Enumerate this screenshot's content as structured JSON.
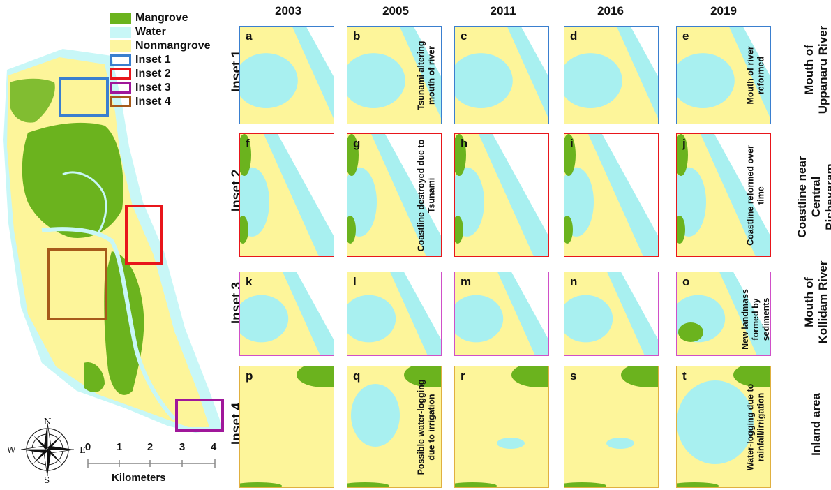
{
  "legend": {
    "items": [
      {
        "label": "Mangrove",
        "color": "#6bb31e",
        "kind": "fill"
      },
      {
        "label": "Water",
        "color": "#c8f7f7",
        "kind": "fill"
      },
      {
        "label": "Nonmangrove",
        "color": "#fdf5a0",
        "kind": "fill"
      },
      {
        "label": "Inset 1",
        "color": "#3a7fcf",
        "kind": "outline"
      },
      {
        "label": "Inset 2",
        "color": "#e8161b",
        "kind": "outline"
      },
      {
        "label": "Inset 3",
        "color": "#a0179a",
        "kind": "outline"
      },
      {
        "label": "Inset 4",
        "color": "#a65a1a",
        "kind": "outline"
      }
    ]
  },
  "years": [
    "2003",
    "2005",
    "2011",
    "2016",
    "2019"
  ],
  "rows": [
    {
      "inset": "Inset 1",
      "place": "Mouth of Uppanaru River",
      "border": "#3a7fcf",
      "letters": [
        "a",
        "b",
        "c",
        "d",
        "e"
      ],
      "notes": [
        {
          "col": 1,
          "text": "Tsunami altering mouth of river"
        },
        {
          "col": 4,
          "text": "Mouth of river reformed"
        }
      ]
    },
    {
      "inset": "Inset 2",
      "place": "Coastline near Central Pichavaram",
      "border": "#e8161b",
      "letters": [
        "f",
        "g",
        "h",
        "i",
        "j"
      ],
      "notes": [
        {
          "col": 1,
          "text": "Coastline destroyed due to Tsunami"
        },
        {
          "col": 4,
          "text": "Coastline reformed over time"
        }
      ]
    },
    {
      "inset": "Inset 3",
      "place": "Mouth of Kollidam River",
      "border": "#d04fc8",
      "letters": [
        "k",
        "l",
        "m",
        "n",
        "o"
      ],
      "notes": [
        {
          "col": 4,
          "text": "New landmass formed by sediments"
        }
      ]
    },
    {
      "inset": "Inset 4",
      "place": "Inland area",
      "border": "#e0b040",
      "letters": [
        "p",
        "q",
        "r",
        "s",
        "t"
      ],
      "notes": [
        {
          "col": 1,
          "text": "Possible water-logging due to irrigation"
        },
        {
          "col": 4,
          "text": "Water-logging due to rainfall/irrigation"
        }
      ]
    }
  ],
  "scale": {
    "ticks": [
      "0",
      "1",
      "2",
      "3",
      "4"
    ],
    "unit": "Kilometers"
  },
  "compass": {
    "n": "N",
    "s": "S",
    "e": "E",
    "w": "W"
  },
  "colors": {
    "mangrove": "#6bb31e",
    "water": "#a8f0f0",
    "land": "#fdf59a",
    "overview_water": "#c8f7f7"
  }
}
